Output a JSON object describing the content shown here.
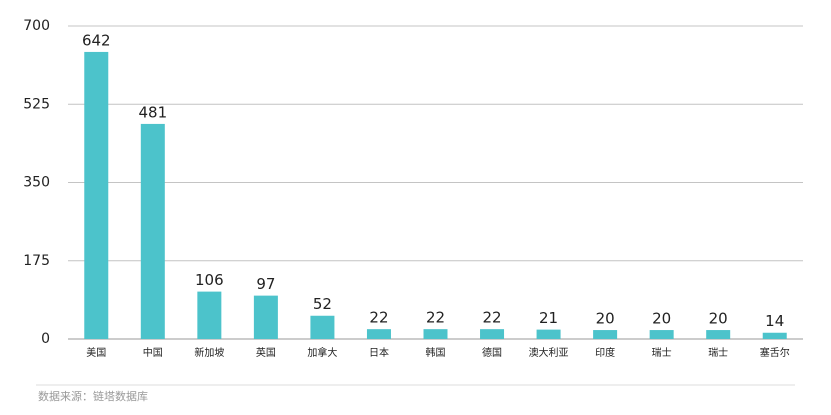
{
  "chart_data": {
    "type": "bar",
    "categories": [
      "美国",
      "中国",
      "新加坡",
      "英国",
      "加拿大",
      "日本",
      "韩国",
      "德国",
      "澳大利亚",
      "印度",
      "瑞士",
      "瑞士",
      "塞舌尔"
    ],
    "values": [
      642,
      481,
      106,
      97,
      52,
      22,
      22,
      22,
      21,
      20,
      20,
      20,
      14
    ],
    "color": "#4cc3cb",
    "ylim": [
      0,
      700
    ],
    "yticks": [
      0,
      175,
      350,
      525,
      700
    ],
    "grid": true,
    "source": "数据来源：链塔数据库"
  }
}
